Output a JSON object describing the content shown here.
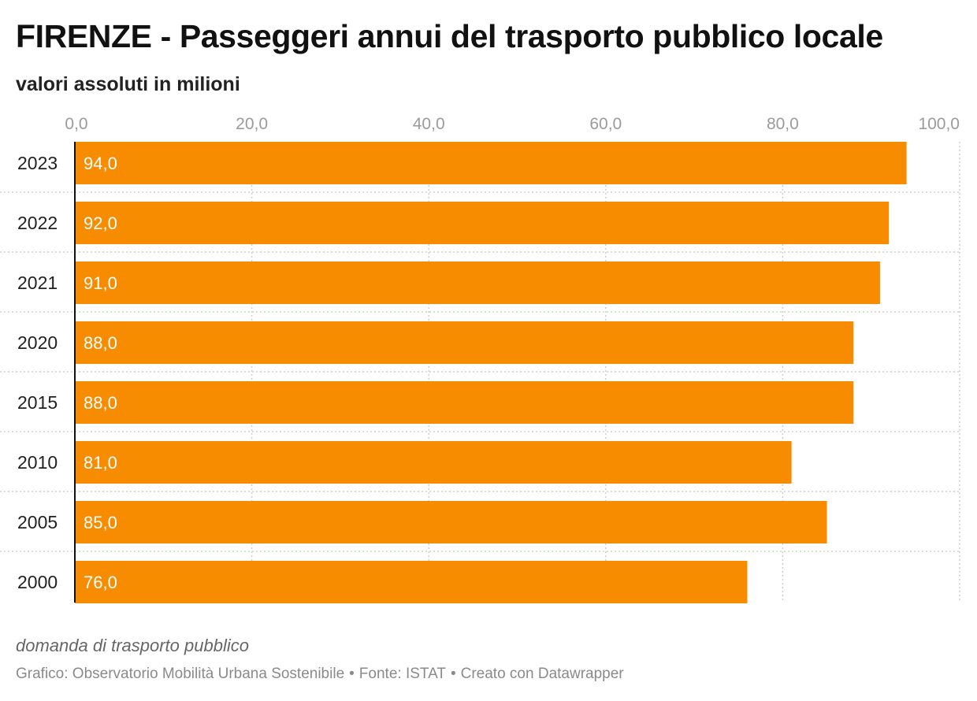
{
  "header": {
    "title": "FIRENZE - Passeggeri annui del trasporto pubblico locale",
    "subtitle": "valori assoluti in milioni"
  },
  "footer": {
    "note": "domanda di trasporto pubblico",
    "credit_chart": "Grafico: Observatorio Mobilità Urbana Sostenibile",
    "credit_source": "Fonte: ISTAT",
    "credit_tool": "Creato con Datawrapper",
    "separator": "•"
  },
  "colors": {
    "bar": "#f78c00",
    "bar_label": "#ffffff",
    "grid": "#cfcfcf",
    "tick_label": "#9b9b9b",
    "category_label": "#222222",
    "baseline": "#111111"
  },
  "chart_data": {
    "type": "bar",
    "orientation": "horizontal",
    "categories": [
      "2023",
      "2022",
      "2021",
      "2020",
      "2015",
      "2010",
      "2005",
      "2000"
    ],
    "values": [
      94.0,
      92.0,
      91.0,
      88.0,
      88.0,
      81.0,
      85.0,
      76.0
    ],
    "value_labels": [
      "94,0",
      "92,0",
      "91,0",
      "88,0",
      "88,0",
      "81,0",
      "85,0",
      "76,0"
    ],
    "xlim": [
      0,
      100
    ],
    "ticks": [
      0,
      20,
      40,
      60,
      80,
      100
    ],
    "tick_labels": [
      "0,0",
      "20,0",
      "40,0",
      "60,0",
      "80,0",
      "100,0"
    ],
    "grid": true,
    "axis_position": "top",
    "title": "FIRENZE - Passeggeri annui del trasporto pubblico locale",
    "subtitle": "valori assoluti in milioni",
    "xlabel": "",
    "ylabel": ""
  }
}
